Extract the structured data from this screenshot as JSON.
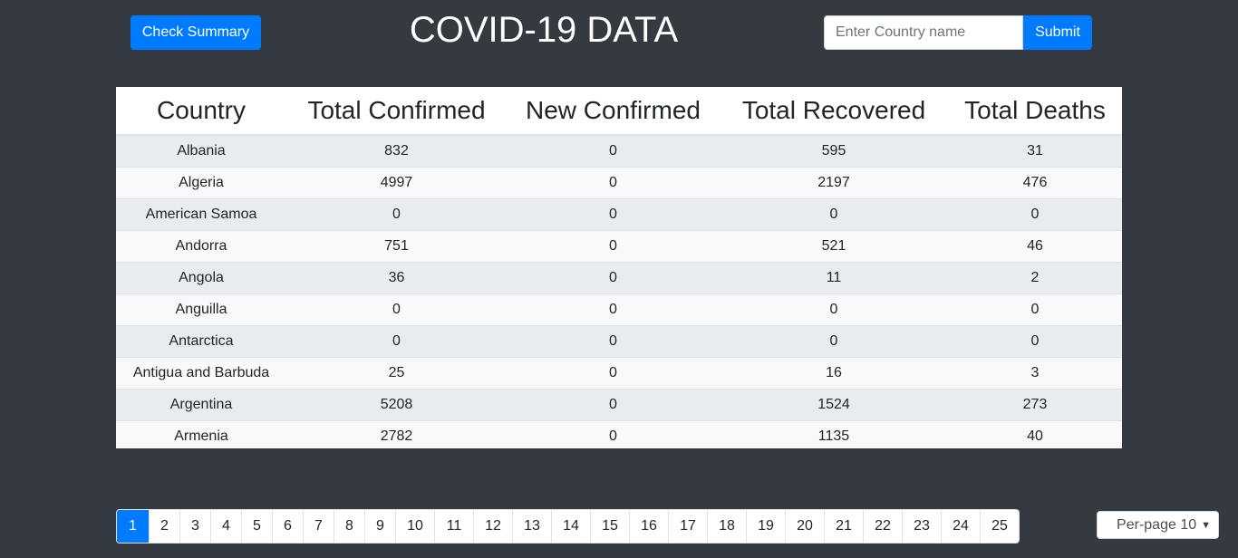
{
  "header": {
    "summary_button": "Check Summary",
    "title": "COVID-19 DATA",
    "search_placeholder": "Enter Country name",
    "submit_button": "Submit"
  },
  "table": {
    "columns": [
      "Country",
      "Total Confirmed",
      "New Confirmed",
      "Total Recovered",
      "Total Deaths"
    ],
    "rows": [
      [
        "Albania",
        "832",
        "0",
        "595",
        "31"
      ],
      [
        "Algeria",
        "4997",
        "0",
        "2197",
        "476"
      ],
      [
        "American Samoa",
        "0",
        "0",
        "0",
        "0"
      ],
      [
        "Andorra",
        "751",
        "0",
        "521",
        "46"
      ],
      [
        "Angola",
        "36",
        "0",
        "11",
        "2"
      ],
      [
        "Anguilla",
        "0",
        "0",
        "0",
        "0"
      ],
      [
        "Antarctica",
        "0",
        "0",
        "0",
        "0"
      ],
      [
        "Antigua and Barbuda",
        "25",
        "0",
        "16",
        "3"
      ],
      [
        "Argentina",
        "5208",
        "0",
        "1524",
        "273"
      ],
      [
        "Armenia",
        "2782",
        "0",
        "1135",
        "40"
      ]
    ]
  },
  "pagination": {
    "pages": [
      "1",
      "2",
      "3",
      "4",
      "5",
      "6",
      "7",
      "8",
      "9",
      "10",
      "11",
      "12",
      "13",
      "14",
      "15",
      "16",
      "17",
      "18",
      "19",
      "20",
      "21",
      "22",
      "23",
      "24",
      "25"
    ],
    "active_page": "1"
  },
  "per_page": {
    "label": "Per-page 10",
    "chevron_icon": "chevron-down-icon"
  },
  "colors": {
    "background": "#343a40",
    "primary": "#007bff"
  }
}
